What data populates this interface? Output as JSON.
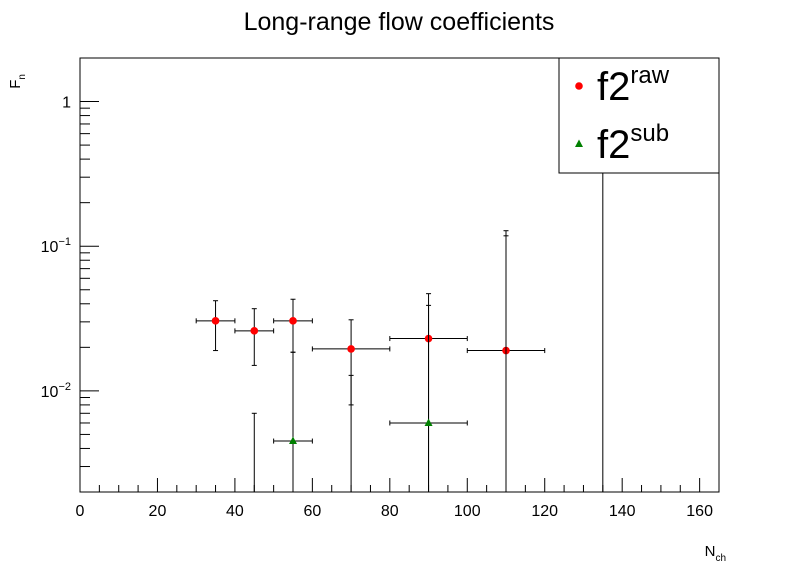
{
  "chart_data": {
    "type": "scatter",
    "title": "Long-range flow coefficients",
    "xlabel": {
      "main": "N",
      "sub": "ch"
    },
    "ylabel": {
      "main": "F",
      "sub": "n"
    },
    "xlim": [
      0,
      165
    ],
    "ylim": [
      0.002,
      2.0
    ],
    "yscale": "log",
    "grid": false,
    "legend_position": "top-right",
    "x_ticks": [
      {
        "value": 0,
        "label": "0"
      },
      {
        "value": 20,
        "label": "20"
      },
      {
        "value": 40,
        "label": "40"
      },
      {
        "value": 60,
        "label": "60"
      },
      {
        "value": 80,
        "label": "80"
      },
      {
        "value": 100,
        "label": "100"
      },
      {
        "value": 120,
        "label": "120"
      },
      {
        "value": 140,
        "label": "140"
      },
      {
        "value": 160,
        "label": "160"
      }
    ],
    "y_ticks": [
      {
        "value": 1,
        "label": "1",
        "exp": ""
      },
      {
        "value": 0.1,
        "label": "10",
        "exp": "−1"
      },
      {
        "value": 0.01,
        "label": "10",
        "exp": "−2"
      }
    ],
    "series": [
      {
        "name": "f2",
        "sup": "raw",
        "color": "#ff0000",
        "marker": "circle",
        "points": [
          {
            "x": 35,
            "xerr": 5,
            "y": 0.0305,
            "ylo": 0.019,
            "yhi": 0.042
          },
          {
            "x": 45,
            "xerr": 5,
            "y": 0.026,
            "ylo": 0.015,
            "yhi": 0.037
          },
          {
            "x": 55,
            "xerr": 5,
            "y": 0.0305,
            "ylo": 0.0185,
            "yhi": 0.043
          },
          {
            "x": 70,
            "xerr": 10,
            "y": 0.0195,
            "ylo": 0.008,
            "yhi": 0.031
          },
          {
            "x": 90,
            "xerr": 10,
            "y": 0.023,
            "ylo": 0.002,
            "yhi": 0.047
          },
          {
            "x": 110,
            "xerr": 10,
            "y": 0.019,
            "ylo": 0.002,
            "yhi": 0.128
          }
        ]
      },
      {
        "name": "f2",
        "sup": "sub",
        "color": "#008000",
        "marker": "triangle",
        "points": [
          {
            "x": 55,
            "xerr": 5,
            "y": 0.0045,
            "ylo": 0.002,
            "yhi": 0.0185
          },
          {
            "x": 90,
            "xerr": 10,
            "y": 0.006,
            "ylo": 0.002,
            "yhi": 0.039
          },
          {
            "x": 45,
            "xerr": 0,
            "y": null,
            "ylo": 0.002,
            "yhi": 0.007
          },
          {
            "x": 70,
            "xerr": 0,
            "y": null,
            "ylo": 0.002,
            "yhi": 0.0128
          },
          {
            "x": 110,
            "xerr": 0,
            "y": null,
            "ylo": 0.002,
            "yhi": 0.118
          },
          {
            "x": 135,
            "xerr": 0,
            "y": null,
            "ylo": 0.002,
            "yhi": 2.0
          }
        ]
      }
    ]
  },
  "colors": {
    "axis": "#000000",
    "raw": "#ff0000",
    "sub": "#008000"
  }
}
